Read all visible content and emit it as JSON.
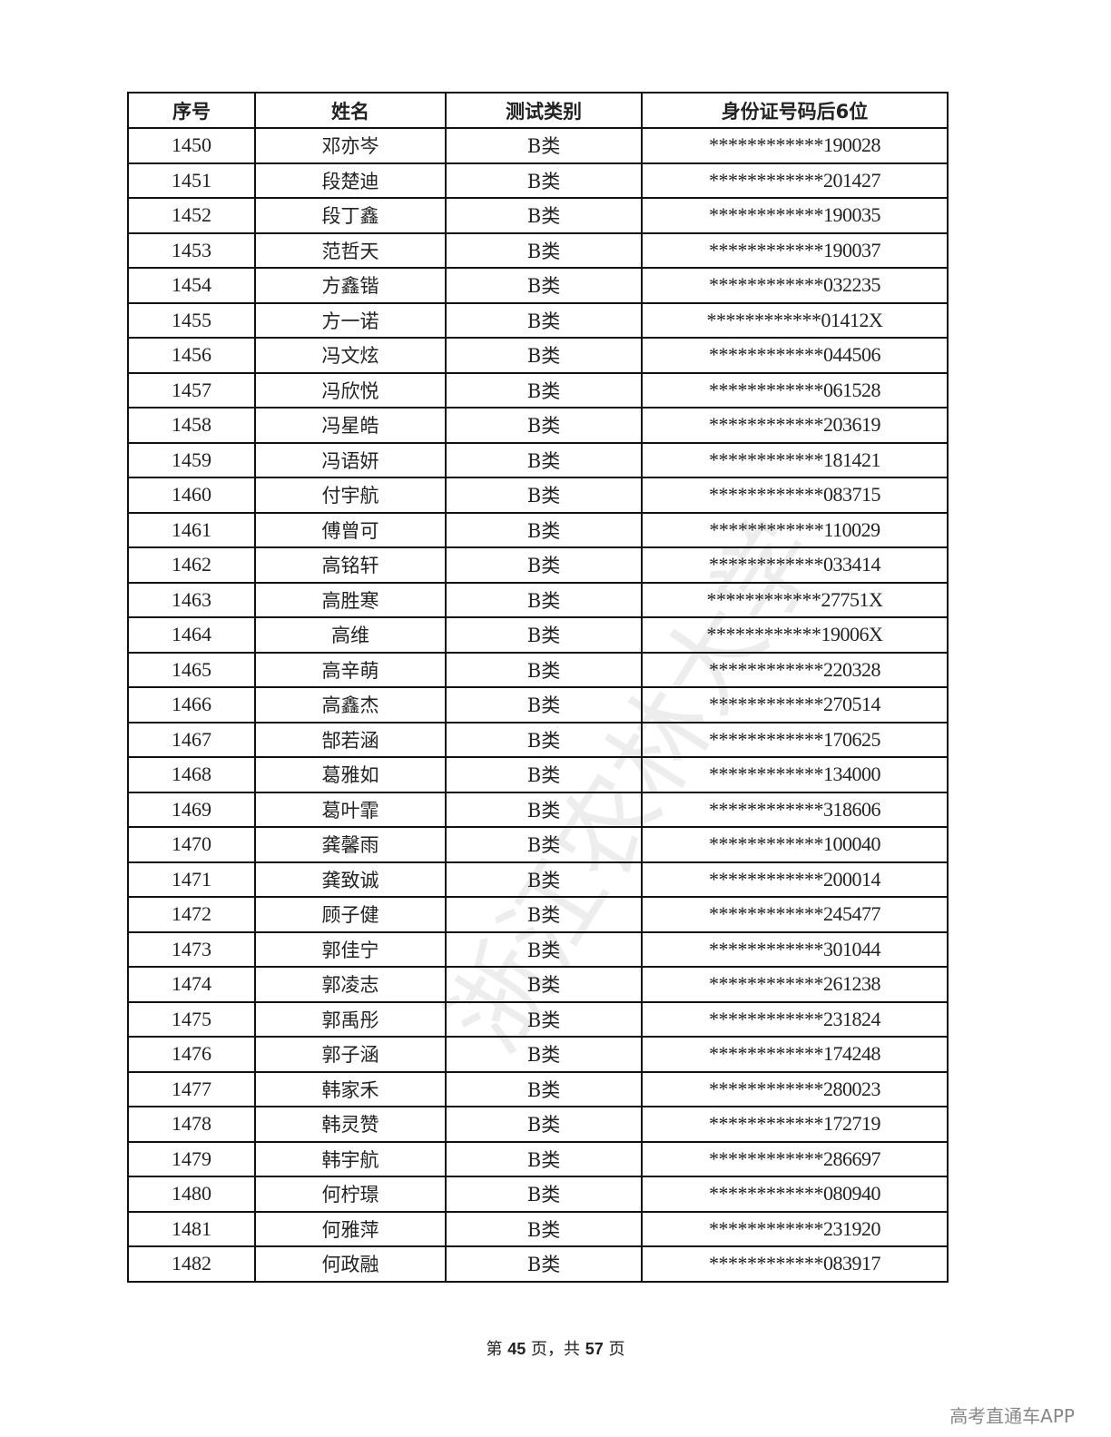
{
  "table": {
    "headers": [
      "序号",
      "姓名",
      "测试类别",
      "身份证号码后6位"
    ],
    "rows": [
      [
        "1450",
        "邓亦岑",
        "B类",
        "************190028"
      ],
      [
        "1451",
        "段楚迪",
        "B类",
        "************201427"
      ],
      [
        "1452",
        "段丁鑫",
        "B类",
        "************190035"
      ],
      [
        "1453",
        "范哲天",
        "B类",
        "************190037"
      ],
      [
        "1454",
        "方鑫锴",
        "B类",
        "************032235"
      ],
      [
        "1455",
        "方一诺",
        "B类",
        "************01412X"
      ],
      [
        "1456",
        "冯文炫",
        "B类",
        "************044506"
      ],
      [
        "1457",
        "冯欣悦",
        "B类",
        "************061528"
      ],
      [
        "1458",
        "冯星皓",
        "B类",
        "************203619"
      ],
      [
        "1459",
        "冯语妍",
        "B类",
        "************181421"
      ],
      [
        "1460",
        "付宇航",
        "B类",
        "************083715"
      ],
      [
        "1461",
        "傅曾可",
        "B类",
        "************110029"
      ],
      [
        "1462",
        "高铭轩",
        "B类",
        "************033414"
      ],
      [
        "1463",
        "高胜寒",
        "B类",
        "************27751X"
      ],
      [
        "1464",
        "高维",
        "B类",
        "************19006X"
      ],
      [
        "1465",
        "高辛萌",
        "B类",
        "************220328"
      ],
      [
        "1466",
        "高鑫杰",
        "B类",
        "************270514"
      ],
      [
        "1467",
        "郜若涵",
        "B类",
        "************170625"
      ],
      [
        "1468",
        "葛雅如",
        "B类",
        "************134000"
      ],
      [
        "1469",
        "葛叶霏",
        "B类",
        "************318606"
      ],
      [
        "1470",
        "龚馨雨",
        "B类",
        "************100040"
      ],
      [
        "1471",
        "龚致诚",
        "B类",
        "************200014"
      ],
      [
        "1472",
        "顾子健",
        "B类",
        "************245477"
      ],
      [
        "1473",
        "郭佳宁",
        "B类",
        "************301044"
      ],
      [
        "1474",
        "郭凌志",
        "B类",
        "************261238"
      ],
      [
        "1475",
        "郭禹彤",
        "B类",
        "************231824"
      ],
      [
        "1476",
        "郭子涵",
        "B类",
        "************174248"
      ],
      [
        "1477",
        "韩家禾",
        "B类",
        "************280023"
      ],
      [
        "1478",
        "韩灵赞",
        "B类",
        "************172719"
      ],
      [
        "1479",
        "韩宇航",
        "B类",
        "************286697"
      ],
      [
        "1480",
        "何柠璟",
        "B类",
        "************080940"
      ],
      [
        "1481",
        "何雅萍",
        "B类",
        "************231920"
      ],
      [
        "1482",
        "何政融",
        "B类",
        "************083917"
      ]
    ]
  },
  "footer": {
    "prefix": "第 ",
    "page": "45",
    "middle": " 页，共 ",
    "total": "57",
    "suffix": " 页"
  },
  "watermark": "浙江农林大学",
  "brand": "高考直通车APP"
}
